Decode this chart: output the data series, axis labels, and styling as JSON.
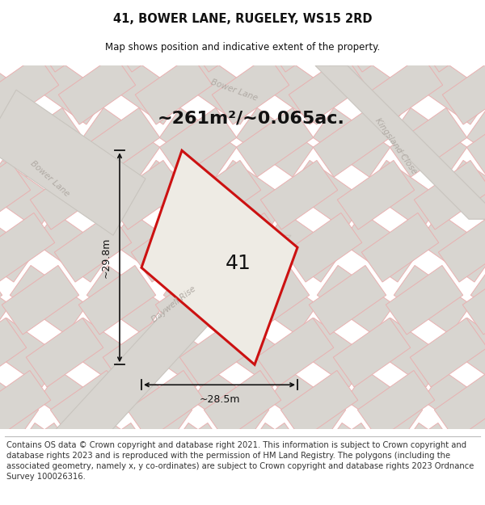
{
  "title_line1": "41, BOWER LANE, RUGELEY, WS15 2RD",
  "title_line2": "Map shows position and indicative extent of the property.",
  "area_text": "~261m²/~0.065ac.",
  "label_41": "41",
  "dim_width": "~28.5m",
  "dim_height": "~29.8m",
  "footer": "Contains OS data © Crown copyright and database right 2021. This information is subject to Crown copyright and database rights 2023 and is reproduced with the permission of HM Land Registry. The polygons (including the associated geometry, namely x, y co-ordinates) are subject to Crown copyright and database rights 2023 Ordnance Survey 100026316.",
  "map_bg": "#f5f4f2",
  "road_fill": "#d8d5d0",
  "road_line": "#c8c4be",
  "plot_fill": "#eeebe4",
  "plot_line_color": "#cc1111",
  "dim_line": "#111111",
  "text_color": "#111111",
  "road_label_color": "#b0aaa4",
  "tile_fill": "#d8d5d0",
  "tile_line": "#e8b0b0",
  "footer_fontsize": 7.2,
  "title1_fontsize": 10.5,
  "title2_fontsize": 8.5,
  "area_fontsize": 16,
  "label_fontsize": 18
}
